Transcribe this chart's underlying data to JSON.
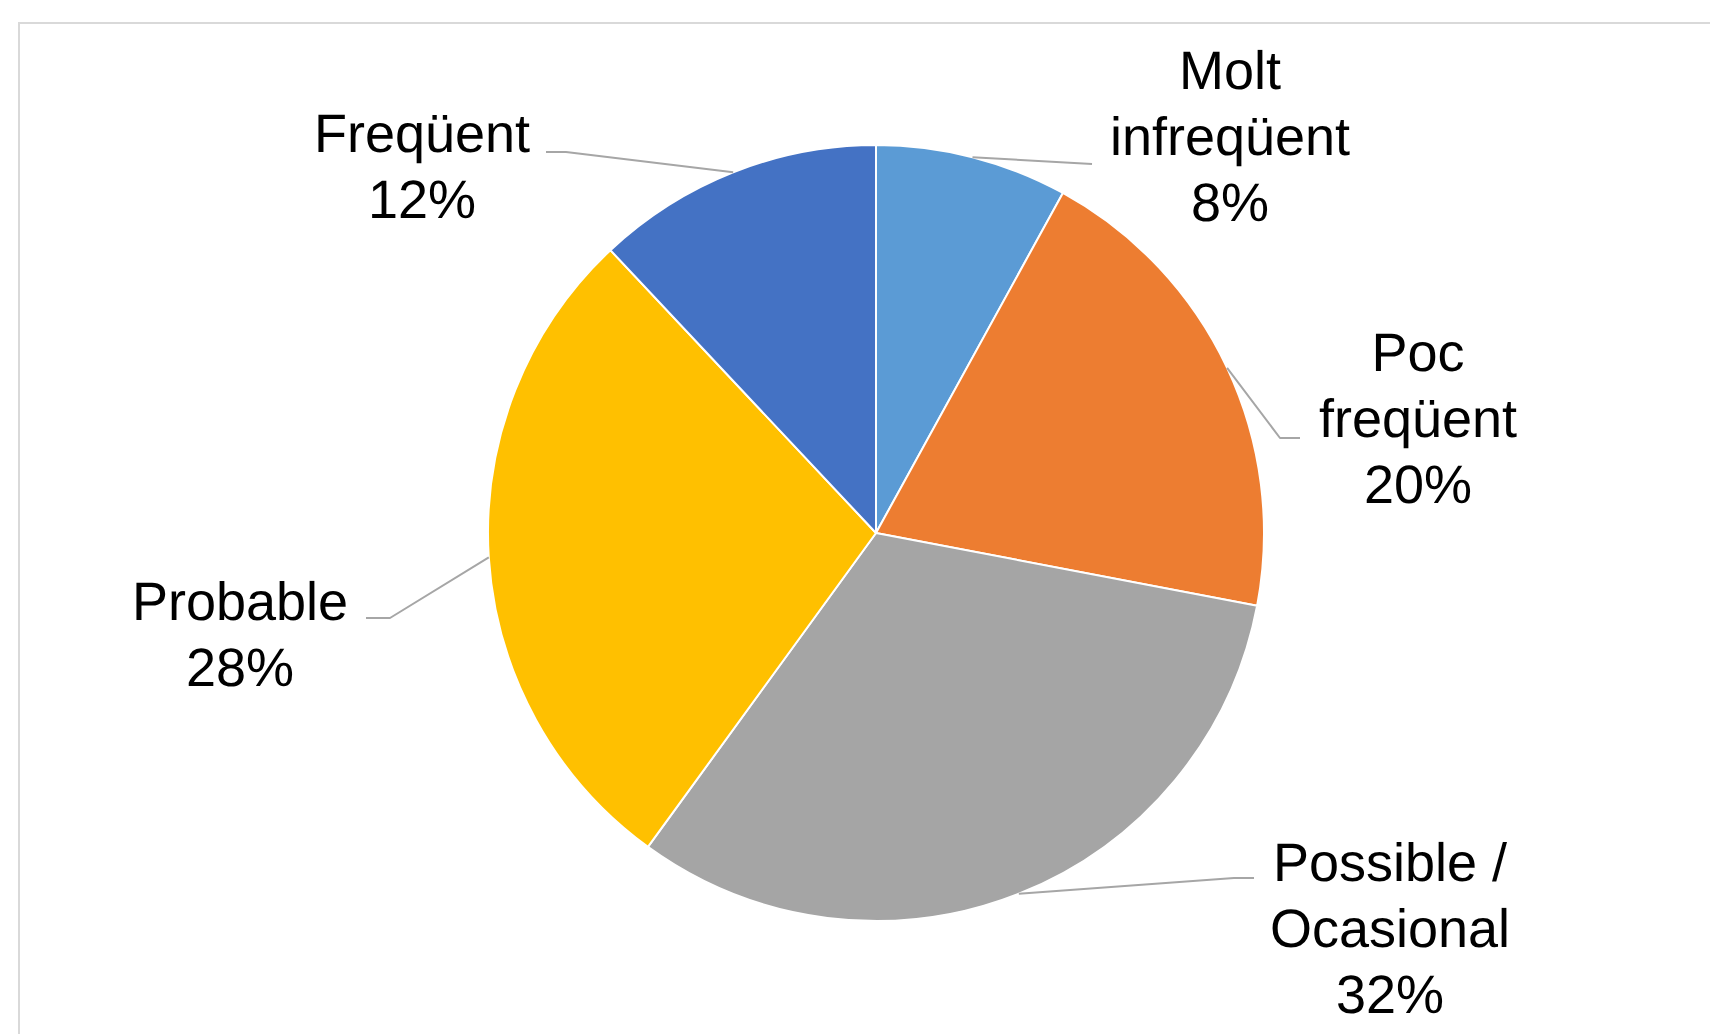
{
  "chart_data": {
    "type": "pie",
    "categories": [
      "Molt infreqüent",
      "Poc freqüent",
      "Possible / Ocasional",
      "Probable",
      "Freqüent"
    ],
    "values": [
      8,
      20,
      32,
      28,
      12
    ],
    "colors": [
      "#5b9bd5",
      "#ed7d31",
      "#a5a5a5",
      "#ffc000",
      "#4472c4"
    ],
    "value_labels": [
      "8%",
      "20%",
      "32%",
      "28%",
      "12%"
    ]
  }
}
